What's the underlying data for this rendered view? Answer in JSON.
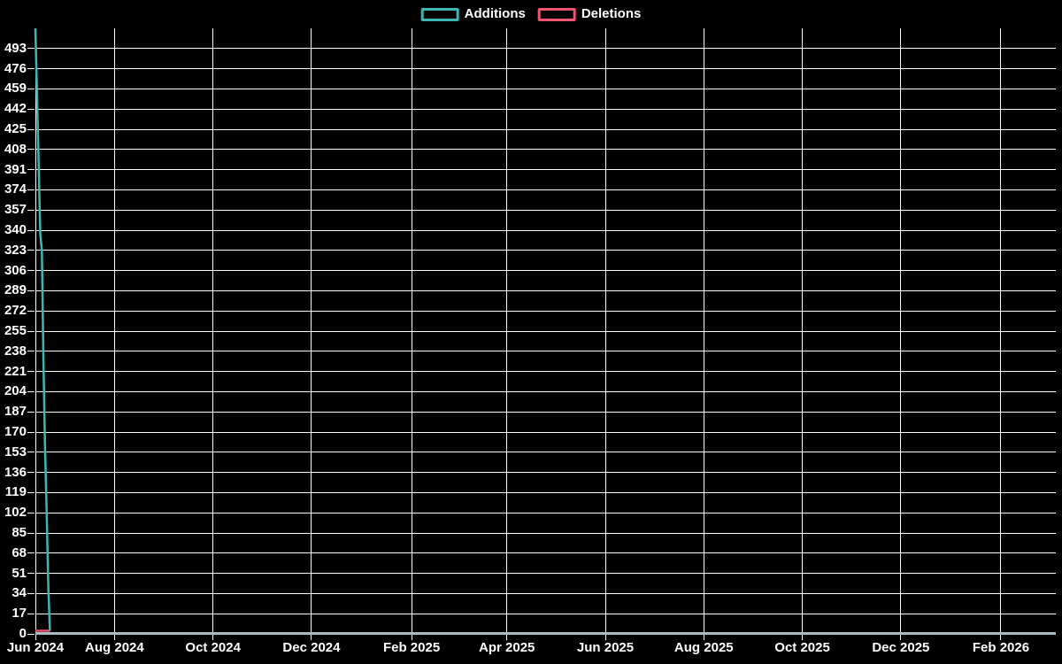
{
  "page": {
    "background": "#000000",
    "text_color": "#ffffff",
    "grid_color": "#ffffff"
  },
  "chart_data": {
    "type": "line",
    "title": "",
    "legend": [
      "Additions",
      "Deletions"
    ],
    "legend_position": "top-center",
    "background": "#000000",
    "grid": true,
    "text_color": "#ffffff",
    "grid_color": "#ffffff",
    "axis_line_color": "#a9bcc3",
    "x": [
      "2024-06-13",
      "2024-06-14",
      "2024-06-15",
      "2024-06-16",
      "2024-06-17",
      "2024-06-18",
      "2024-06-19",
      "2024-06-20",
      "2024-06-21",
      "2024-06-22"
    ],
    "series": [
      {
        "name": "Additions",
        "color": "#3fb6b6",
        "values": [
          510,
          455,
          399,
          337,
          323,
          230,
          156,
          101,
          39,
          0
        ]
      },
      {
        "name": "Deletions",
        "color": "#ef5570",
        "values": [
          0,
          0,
          0,
          0,
          0,
          0,
          0,
          0,
          0,
          0
        ]
      }
    ],
    "x_axis": {
      "start": "2024-06-13",
      "end": "2026-03-07",
      "tick_labels": [
        "Jun 2024",
        "Aug 2024",
        "Oct 2024",
        "Dec 2024",
        "Feb 2025",
        "Apr 2025",
        "Jun 2025",
        "Aug 2025",
        "Oct 2025",
        "Dec 2025",
        "Feb 2026"
      ],
      "tick_dates": [
        "2024-06-13",
        "2024-08-01",
        "2024-10-01",
        "2024-12-01",
        "2025-02-01",
        "2025-04-01",
        "2025-06-01",
        "2025-08-01",
        "2025-10-01",
        "2025-12-01",
        "2026-02-01"
      ]
    },
    "y_axis": {
      "min": 0,
      "max": 510,
      "tick_step": 17,
      "ticks": [
        0,
        17,
        34,
        51,
        68,
        85,
        102,
        119,
        136,
        153,
        170,
        187,
        204,
        221,
        238,
        255,
        272,
        289,
        306,
        323,
        340,
        357,
        374,
        391,
        408,
        425,
        442,
        459,
        476,
        493
      ]
    }
  }
}
